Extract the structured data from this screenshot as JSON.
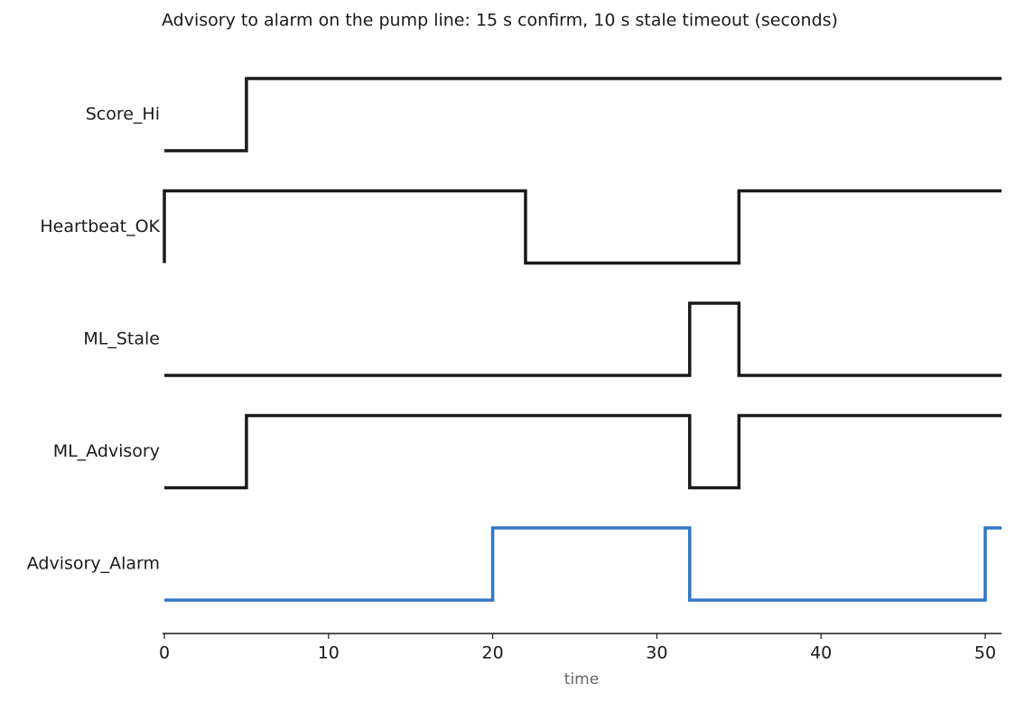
{
  "chart_data": {
    "type": "timing",
    "title": "Advisory to alarm on the pump line: 15 s confirm, 10 s stale timeout (seconds)",
    "xlabel": "time",
    "xlim": [
      0,
      51
    ],
    "xticks": [
      0,
      10,
      20,
      30,
      40,
      50
    ],
    "ylim": [
      0,
      1
    ],
    "series": [
      {
        "name": "Score_Hi",
        "color": "#1a1a1a",
        "x": [
          0,
          5,
          51
        ],
        "values": [
          0,
          1,
          1
        ]
      },
      {
        "name": "Heartbeat_OK",
        "color": "#1a1a1a",
        "x": [
          0,
          0,
          22,
          35,
          51
        ],
        "values": [
          0,
          1,
          0,
          1,
          1
        ]
      },
      {
        "name": "ML_Stale",
        "color": "#1a1a1a",
        "x": [
          0,
          32,
          35,
          51
        ],
        "values": [
          0,
          1,
          0,
          0
        ]
      },
      {
        "name": "ML_Advisory",
        "color": "#1a1a1a",
        "x": [
          0,
          5,
          32,
          35,
          51
        ],
        "values": [
          0,
          1,
          0,
          1,
          1
        ]
      },
      {
        "name": "Advisory_Alarm",
        "color": "#2f77c8",
        "x": [
          0,
          20,
          32,
          50,
          51
        ],
        "values": [
          0,
          1,
          0,
          1,
          1
        ]
      }
    ]
  }
}
